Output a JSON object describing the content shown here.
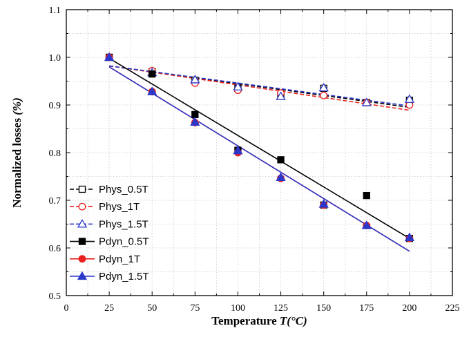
{
  "chart_data": {
    "type": "scatter",
    "xlabel": "Temperature ",
    "xlabel_italic": "T(°C)",
    "ylabel": "Normalized losses ",
    "ylabel_italic": "(%)",
    "xlim": [
      0,
      225
    ],
    "ylim": [
      0.5,
      1.1
    ],
    "xticks": [
      0,
      25,
      50,
      75,
      100,
      125,
      150,
      175,
      200,
      225
    ],
    "yticks": [
      0.5,
      0.6,
      0.7,
      0.8,
      0.9,
      1.0,
      1.1
    ],
    "grid": true,
    "legend_position": "bottom-left",
    "series": [
      {
        "name": "Phys_0.5T",
        "color": "#000000",
        "marker": "square-open",
        "line_style": "dashed",
        "x": [
          25,
          50,
          75,
          100,
          125,
          150,
          175,
          200
        ],
        "y": [
          1.0,
          0.97,
          0.952,
          0.935,
          0.92,
          0.935,
          0.905,
          0.91
        ],
        "fit": [
          [
            25,
            0.982
          ],
          [
            200,
            0.895
          ]
        ]
      },
      {
        "name": "Phys_1T",
        "color": "#e8211f",
        "marker": "circle-open",
        "line_style": "dashed",
        "x": [
          25,
          50,
          75,
          100,
          125,
          150,
          175,
          200
        ],
        "y": [
          1.0,
          0.972,
          0.946,
          0.931,
          0.925,
          0.92,
          0.905,
          0.9
        ],
        "fit": [
          [
            25,
            0.982
          ],
          [
            200,
            0.889
          ]
        ]
      },
      {
        "name": "Phys_1.5T",
        "color": "#2b37c9",
        "marker": "triangle-open",
        "line_style": "dashed",
        "x": [
          25,
          50,
          75,
          100,
          125,
          150,
          175,
          200
        ],
        "y": [
          1.0,
          0.968,
          0.953,
          0.938,
          0.918,
          0.936,
          0.905,
          0.912
        ],
        "fit": [
          [
            25,
            0.982
          ],
          [
            200,
            0.898
          ]
        ]
      },
      {
        "name": "Pdyn_0.5T",
        "color": "#000000",
        "marker": "square-filled",
        "line_style": "solid",
        "x": [
          25,
          50,
          75,
          100,
          125,
          150,
          175,
          200
        ],
        "y": [
          1.0,
          0.965,
          0.88,
          0.805,
          0.785,
          0.69,
          0.71,
          0.62
        ],
        "fit": [
          [
            25,
            0.998
          ],
          [
            200,
            0.62
          ]
        ]
      },
      {
        "name": "Pdyn_1T",
        "color": "#e8211f",
        "marker": "circle-filled",
        "line_style": "solid",
        "x": [
          25,
          50,
          75,
          100,
          125,
          150,
          175,
          200
        ],
        "y": [
          1.0,
          0.928,
          0.863,
          0.8,
          0.746,
          0.69,
          0.647,
          0.62
        ],
        "fit": [
          [
            25,
            0.98
          ],
          [
            200,
            0.593
          ]
        ]
      },
      {
        "name": "Pdyn_1.5T",
        "color": "#2b37c9",
        "marker": "triangle-filled",
        "line_style": "solid",
        "x": [
          25,
          50,
          75,
          100,
          125,
          150,
          175,
          200
        ],
        "y": [
          1.0,
          0.928,
          0.864,
          0.804,
          0.748,
          0.692,
          0.647,
          0.622
        ],
        "fit": [
          [
            25,
            0.98
          ],
          [
            200,
            0.593
          ]
        ]
      }
    ]
  }
}
